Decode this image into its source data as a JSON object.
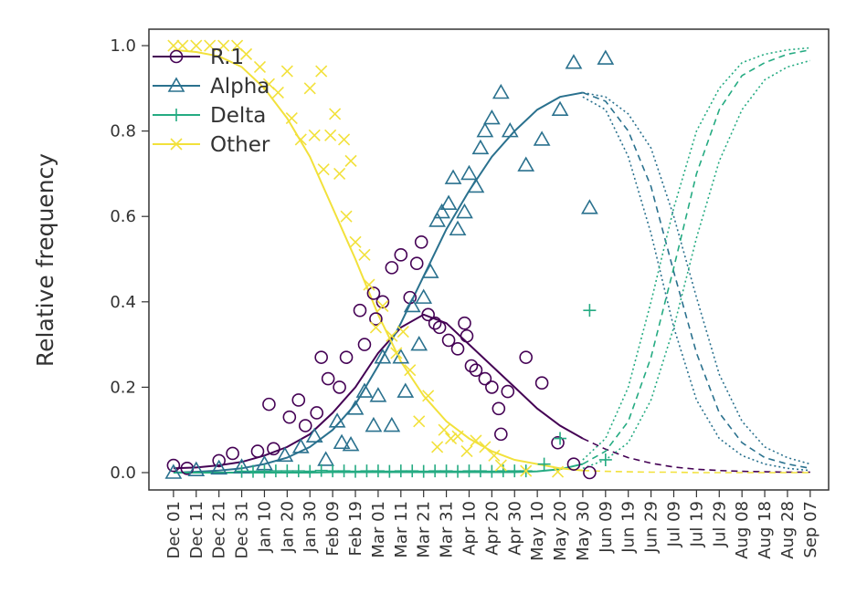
{
  "chart_data": {
    "type": "scatter",
    "ylabel": "Relative frequency",
    "xlim": [
      -10.8,
      288.1
    ],
    "ylim": [
      -0.0406,
      1.0385
    ],
    "yticks": [
      {
        "value": 0,
        "label": "0.0"
      },
      0.2,
      0.4,
      0.6,
      0.8,
      {
        "value": 1,
        "label": "1.0"
      }
    ],
    "xticks": [
      {
        "value": 0,
        "label": "Dec 01"
      },
      {
        "value": 10,
        "label": "Dec 11"
      },
      {
        "value": 20,
        "label": "Dec 21"
      },
      {
        "value": 30,
        "label": "Dec 31"
      },
      {
        "value": 40,
        "label": "Jan 10"
      },
      {
        "value": 50,
        "label": "Jan 20"
      },
      {
        "value": 60,
        "label": "Jan 30"
      },
      {
        "value": 70,
        "label": "Feb 09"
      },
      {
        "value": 80,
        "label": "Feb 19"
      },
      {
        "value": 90,
        "label": "Mar 01"
      },
      {
        "value": 100,
        "label": "Mar 11"
      },
      {
        "value": 110,
        "label": "Mar 21"
      },
      {
        "value": 120,
        "label": "Mar 31"
      },
      {
        "value": 130,
        "label": "Apr 10"
      },
      {
        "value": 140,
        "label": "Apr 20"
      },
      {
        "value": 150,
        "label": "Apr 30"
      },
      {
        "value": 160,
        "label": "May 10"
      },
      {
        "value": 170,
        "label": "May 20"
      },
      {
        "value": 180,
        "label": "May 30"
      },
      {
        "value": 190,
        "label": "Jun 09"
      },
      {
        "value": 200,
        "label": "Jun 19"
      },
      {
        "value": 210,
        "label": "Jun 29"
      },
      {
        "value": 220,
        "label": "Jul 09"
      },
      {
        "value": 230,
        "label": "Jul 19"
      },
      {
        "value": 240,
        "label": "Jul 29"
      },
      {
        "value": 250,
        "label": "Aug 08"
      },
      {
        "value": 260,
        "label": "Aug 18"
      },
      {
        "value": 270,
        "label": "Aug 28"
      },
      {
        "value": 280,
        "label": "Sep 07"
      }
    ],
    "legend": "top-left",
    "series": [
      {
        "name": "R.1",
        "color": "#440154",
        "marker": "circle",
        "x": [
          0,
          6,
          20,
          26,
          37,
          42,
          44,
          51,
          55,
          58,
          63,
          65,
          68,
          73,
          76,
          82,
          84,
          88,
          89,
          92,
          96,
          100,
          104,
          107,
          109,
          112,
          115,
          117,
          121,
          125,
          128,
          129,
          131,
          133,
          137,
          140,
          143,
          144,
          147,
          155,
          162,
          169,
          176,
          183
        ],
        "values": [
          0.017,
          0.01,
          0.028,
          0.045,
          0.05,
          0.16,
          0.056,
          0.13,
          0.17,
          0.11,
          0.14,
          0.27,
          0.22,
          0.2,
          0.27,
          0.38,
          0.3,
          0.42,
          0.36,
          0.4,
          0.48,
          0.51,
          0.41,
          0.49,
          0.54,
          0.37,
          0.35,
          0.34,
          0.31,
          0.29,
          0.35,
          0.32,
          0.25,
          0.24,
          0.22,
          0.2,
          0.15,
          0.09,
          0.19,
          0.27,
          0.21,
          0.07,
          0.02,
          0.0
        ]
      },
      {
        "name": "Alpha",
        "color": "#2a718e",
        "marker": "triangle",
        "x": [
          0,
          10,
          20,
          30,
          40,
          49,
          56,
          62,
          67,
          72,
          74,
          78,
          80,
          84,
          88,
          90,
          92,
          96,
          100,
          102,
          105,
          108,
          110,
          113,
          116,
          118,
          121,
          123,
          125,
          128,
          130,
          133,
          135,
          137,
          140,
          144,
          148,
          155,
          162,
          170,
          176,
          183,
          190
        ],
        "values": [
          0.0,
          0.006,
          0.01,
          0.013,
          0.02,
          0.04,
          0.06,
          0.085,
          0.03,
          0.12,
          0.07,
          0.065,
          0.15,
          0.19,
          0.11,
          0.18,
          0.27,
          0.11,
          0.27,
          0.19,
          0.39,
          0.3,
          0.41,
          0.47,
          0.59,
          0.61,
          0.63,
          0.69,
          0.57,
          0.61,
          0.7,
          0.67,
          0.76,
          0.8,
          0.83,
          0.89,
          0.8,
          0.72,
          0.78,
          0.85,
          0.96,
          0.62,
          0.97
        ]
      },
      {
        "name": "Delta",
        "color": "#25ab82",
        "marker": "plus",
        "x": [
          30,
          35,
          40,
          45,
          50,
          55,
          60,
          65,
          70,
          75,
          80,
          85,
          90,
          95,
          100,
          105,
          110,
          115,
          120,
          125,
          130,
          135,
          140,
          145,
          150,
          155,
          163,
          170,
          183,
          190
        ],
        "values": [
          0.003,
          0.003,
          0.003,
          0.004,
          0.004,
          0.004,
          0.003,
          0.005,
          0.004,
          0.004,
          0.003,
          0.004,
          0.004,
          0.003,
          0.004,
          0.004,
          0.003,
          0.004,
          0.004,
          0.003,
          0.004,
          0.004,
          0.003,
          0.004,
          0.004,
          0.004,
          0.02,
          0.08,
          0.38,
          0.03
        ]
      },
      {
        "name": "Other",
        "color": "#f2e13b",
        "marker": "cross",
        "x": [
          0,
          4,
          10,
          16,
          22,
          28,
          32,
          38,
          42,
          46,
          50,
          52,
          56,
          60,
          62,
          65,
          66,
          69,
          71,
          73,
          75,
          76,
          78,
          80,
          84,
          86,
          89,
          92,
          96,
          98,
          101,
          104,
          108,
          112,
          116,
          119,
          122,
          125,
          129,
          133,
          137,
          141,
          144,
          155,
          169
        ],
        "values": [
          1.0,
          1.0,
          1.0,
          1.0,
          1.0,
          1.0,
          0.98,
          0.95,
          0.91,
          0.89,
          0.94,
          0.83,
          0.78,
          0.9,
          0.79,
          0.94,
          0.71,
          0.79,
          0.84,
          0.7,
          0.78,
          0.6,
          0.73,
          0.54,
          0.51,
          0.44,
          0.34,
          0.39,
          0.32,
          0.28,
          0.33,
          0.24,
          0.12,
          0.18,
          0.06,
          0.1,
          0.08,
          0.085,
          0.05,
          0.075,
          0.06,
          0.04,
          0.017,
          0.004,
          0.002
        ]
      }
    ],
    "fits": [
      {
        "color": "#440154",
        "style": "solid",
        "x": [
          0,
          10,
          20,
          30,
          40,
          50,
          60,
          70,
          80,
          90,
          100,
          110,
          120,
          130,
          140,
          150,
          160,
          170,
          180
        ],
        "values": [
          0.01,
          0.012,
          0.017,
          0.025,
          0.04,
          0.06,
          0.09,
          0.14,
          0.2,
          0.28,
          0.34,
          0.37,
          0.35,
          0.3,
          0.25,
          0.2,
          0.15,
          0.11,
          0.08
        ]
      },
      {
        "color": "#440154",
        "style": "dashed",
        "x": [
          180,
          190,
          200,
          210,
          220,
          230,
          240,
          250,
          260,
          270,
          280
        ],
        "values": [
          0.08,
          0.055,
          0.035,
          0.022,
          0.013,
          0.008,
          0.005,
          0.003,
          0.002,
          0.001,
          0.001
        ]
      },
      {
        "color": "#2a718e",
        "style": "solid",
        "x": [
          0,
          10,
          20,
          30,
          40,
          50,
          60,
          70,
          80,
          90,
          100,
          110,
          120,
          130,
          140,
          150,
          160,
          170,
          180
        ],
        "values": [
          0,
          0.002,
          0.005,
          0.01,
          0.02,
          0.035,
          0.06,
          0.1,
          0.16,
          0.25,
          0.35,
          0.46,
          0.57,
          0.66,
          0.74,
          0.8,
          0.85,
          0.88,
          0.89
        ]
      },
      {
        "color": "#2a718e",
        "style": "dashed",
        "x": [
          180,
          190,
          200,
          210,
          220,
          230,
          240,
          250,
          260,
          270,
          280
        ],
        "values": [
          0.89,
          0.87,
          0.8,
          0.67,
          0.47,
          0.28,
          0.14,
          0.07,
          0.035,
          0.02,
          0.01
        ]
      },
      {
        "color": "#2a718e",
        "style": "dotted",
        "x": [
          180,
          190,
          200,
          210,
          220,
          230,
          240,
          250,
          260,
          270,
          280
        ],
        "values": [
          0.89,
          0.88,
          0.84,
          0.76,
          0.6,
          0.41,
          0.23,
          0.12,
          0.06,
          0.035,
          0.02
        ]
      },
      {
        "color": "#2a718e",
        "style": "dotted",
        "x": [
          180,
          190,
          200,
          210,
          220,
          230,
          240,
          250,
          260,
          270,
          280
        ],
        "values": [
          0.88,
          0.85,
          0.74,
          0.56,
          0.34,
          0.17,
          0.08,
          0.04,
          0.02,
          0.01,
          0.005
        ]
      },
      {
        "color": "#25ab82",
        "style": "solid",
        "x": [
          0,
          10,
          20,
          30,
          40,
          50,
          60,
          70,
          80,
          90,
          100,
          110,
          120,
          130,
          140,
          150,
          160,
          170,
          180
        ],
        "values": [
          0,
          0,
          0,
          0,
          0,
          0,
          0,
          0.001,
          0.001,
          0.001,
          0.001,
          0.001,
          0.001,
          0.001,
          0.001,
          0.001,
          0.003,
          0.008,
          0.02
        ]
      },
      {
        "color": "#25ab82",
        "style": "dashed",
        "x": [
          180,
          190,
          200,
          210,
          220,
          230,
          240,
          250,
          260,
          270,
          280
        ],
        "values": [
          0.02,
          0.05,
          0.12,
          0.27,
          0.48,
          0.7,
          0.85,
          0.93,
          0.96,
          0.98,
          0.99
        ]
      },
      {
        "color": "#25ab82",
        "style": "dotted",
        "x": [
          180,
          190,
          200,
          210,
          220,
          230,
          240,
          250,
          260,
          270,
          280
        ],
        "values": [
          0.03,
          0.08,
          0.2,
          0.4,
          0.62,
          0.8,
          0.9,
          0.96,
          0.98,
          0.99,
          0.995
        ]
      },
      {
        "color": "#25ab82",
        "style": "dotted",
        "x": [
          180,
          190,
          200,
          210,
          220,
          230,
          240,
          250,
          260,
          270,
          280
        ],
        "values": [
          0.01,
          0.03,
          0.07,
          0.17,
          0.34,
          0.55,
          0.73,
          0.85,
          0.92,
          0.95,
          0.965
        ]
      },
      {
        "color": "#f2e13b",
        "style": "solid",
        "x": [
          0,
          10,
          20,
          30,
          40,
          50,
          60,
          70,
          80,
          90,
          100,
          110,
          120,
          130,
          140,
          150,
          160,
          170,
          180
        ],
        "values": [
          0.99,
          0.985,
          0.975,
          0.95,
          0.9,
          0.83,
          0.74,
          0.62,
          0.5,
          0.37,
          0.26,
          0.18,
          0.12,
          0.08,
          0.05,
          0.03,
          0.02,
          0.01,
          0.005
        ]
      },
      {
        "color": "#f2e13b",
        "style": "dashed",
        "x": [
          180,
          190,
          200,
          210,
          220,
          230,
          240,
          250,
          260,
          270,
          280
        ],
        "values": [
          0.005,
          0.003,
          0.002,
          0.001,
          0.001,
          0,
          0,
          0,
          0,
          0,
          0
        ]
      }
    ]
  }
}
